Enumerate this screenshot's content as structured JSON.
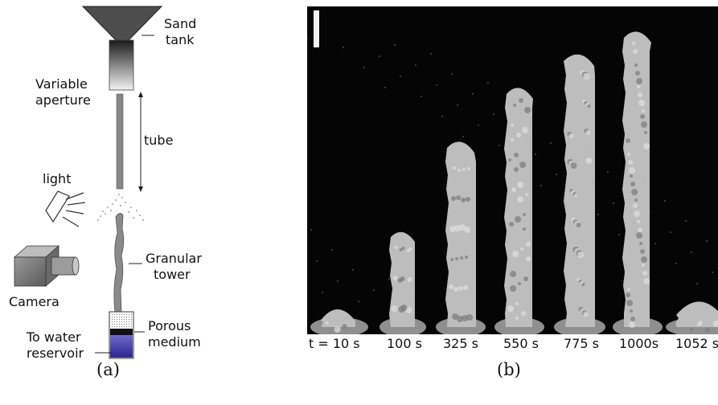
{
  "panel_a": {
    "labels": {
      "sand_tank": [
        "Sand",
        "tank"
      ],
      "variable_aperture": [
        "Variable",
        "aperture"
      ],
      "tube": "tube",
      "light": "light",
      "granular_tower": [
        "Granular",
        "tower"
      ],
      "camera": "Camera",
      "porous_medium": [
        "Porous",
        "medium"
      ],
      "water_reservoir": [
        "To water",
        "reservoir"
      ]
    },
    "caption": "(a)",
    "colors": {
      "water": "#3b36a0",
      "funnel": "#555555",
      "tube": "#888888"
    }
  },
  "panel_b": {
    "caption": "(b)",
    "times": [
      "t = 10 s",
      "100 s",
      "325 s",
      "550 s",
      "775 s",
      "1000s",
      "1052 s"
    ],
    "colors": {
      "background": "#050505",
      "sand": "#bdbdbd",
      "scale_bar": "#f2f2f2"
    }
  }
}
